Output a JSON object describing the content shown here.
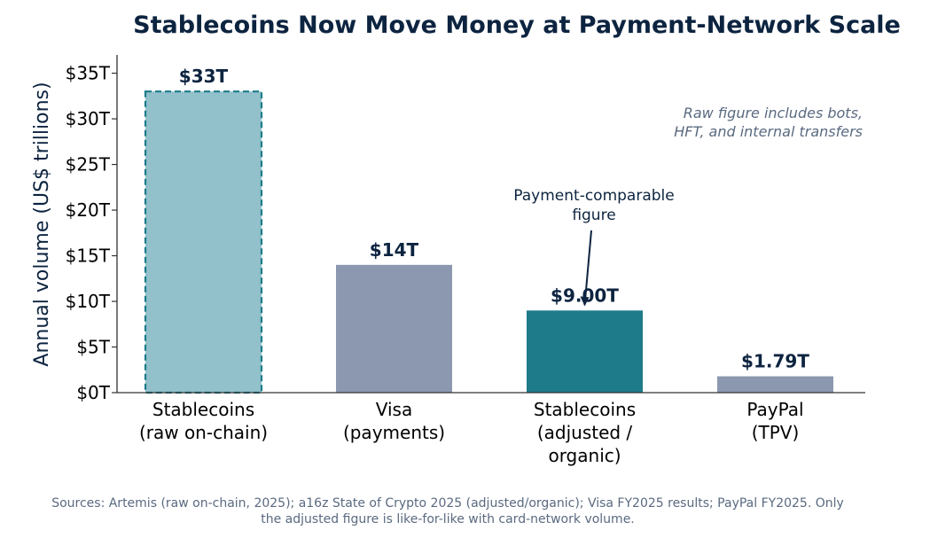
{
  "chart_data": {
    "type": "bar",
    "title": "Stablecoins Now Move Money at Payment-Network Scale",
    "xlabel": "",
    "ylabel": "Annual volume (US$ trillions)",
    "ylim": [
      0,
      37
    ],
    "yticks": [
      0,
      5,
      10,
      15,
      20,
      25,
      30,
      35
    ],
    "ytick_labels": [
      "$0T",
      "$5T",
      "$10T",
      "$15T",
      "$20T",
      "$25T",
      "$30T",
      "$35T"
    ],
    "grid": false,
    "categories": [
      [
        "Stablecoins",
        "(raw on-chain)"
      ],
      [
        "Visa",
        "(payments)"
      ],
      [
        "Stablecoins",
        "(adjusted /",
        "organic)"
      ],
      [
        "PayPal",
        "(TPV)"
      ]
    ],
    "values": [
      33,
      14,
      9.0,
      1.79
    ],
    "value_labels": [
      "$33T",
      "$14T",
      "$9.00T",
      "$1.79T"
    ],
    "bar_colors": [
      "#92c1cb",
      "#8c98b0",
      "#1e7b8a",
      "#8c98b0"
    ],
    "bar_dashed": [
      true,
      false,
      false,
      false
    ],
    "dashed_edge_color": "#1e7b8a",
    "annotations": {
      "raw_note": [
        "Raw figure includes bots,",
        "HFT, and internal transfers"
      ],
      "callout": [
        "Payment-comparable",
        "figure"
      ],
      "callout_target_index": 2
    }
  },
  "footer": {
    "sources_lines": [
      "Sources: Artemis (raw on-chain, 2025); a16z State of Crypto 2025 (adjusted/organic); Visa FY2025 results; PayPal FY2025. Only",
      "the adjusted figure is like-for-like with card-network volume."
    ]
  },
  "colors": {
    "title": "#0d2440",
    "axis": "#333333",
    "note": "#5a6a80"
  }
}
